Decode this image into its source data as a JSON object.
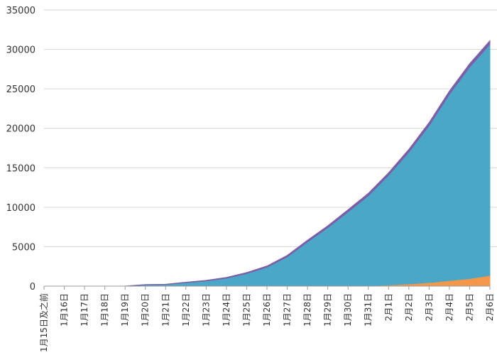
{
  "chart_data": {
    "type": "area",
    "stacked": true,
    "title": "",
    "xlabel": "",
    "ylabel": "",
    "ylim": [
      0,
      35000
    ],
    "yticks": [
      0,
      5000,
      10000,
      15000,
      20000,
      25000,
      30000,
      35000
    ],
    "grid": true,
    "legend": "none",
    "categories": [
      "1月15日及之前",
      "1月16日",
      "1月17日",
      "1月18日",
      "1月19日",
      "1月20日",
      "1月21日",
      "1月22日",
      "1月23日",
      "1月24日",
      "1月25日",
      "1月26日",
      "1月27日",
      "1月28日",
      "1月29日",
      "1月30日",
      "1月31日",
      "2月1日",
      "2月2日",
      "2月3日",
      "2月4日",
      "2月5日",
      "2月6日"
    ],
    "series": [
      {
        "color": "#f4974a",
        "values": [
          0,
          0,
          0,
          0,
          0,
          0,
          0,
          0,
          0,
          0,
          0,
          0,
          0,
          0,
          0,
          0,
          60,
          150,
          280,
          450,
          700,
          950,
          1350
        ]
      },
      {
        "color": "#4aa8c6",
        "values": [
          0,
          0,
          0,
          0,
          0,
          180,
          200,
          450,
          650,
          1000,
          1600,
          2400,
          3700,
          5600,
          7400,
          9400,
          11400,
          13900,
          16700,
          19900,
          23600,
          26800,
          29300
        ]
      },
      {
        "color": "#7b5ea7",
        "values": [
          0,
          0,
          0,
          0,
          0,
          20,
          40,
          50,
          80,
          100,
          120,
          150,
          200,
          220,
          250,
          280,
          300,
          320,
          350,
          380,
          420,
          440,
          450
        ]
      }
    ]
  }
}
